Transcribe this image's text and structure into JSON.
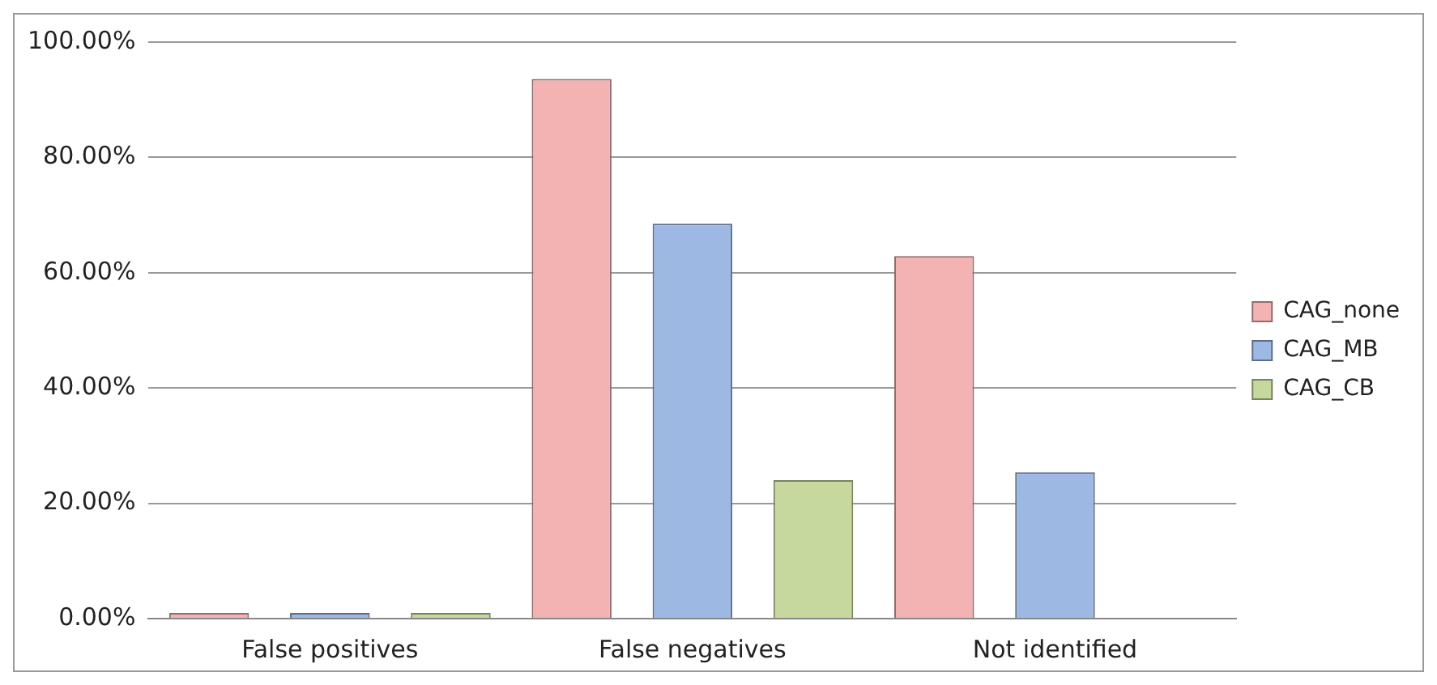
{
  "chart_data": {
    "type": "bar",
    "categories": [
      "False positives",
      "False negatives",
      "Not identified"
    ],
    "series": [
      {
        "name": "CAG_none",
        "color": "#f4b3b3",
        "values": [
          1,
          93.6,
          62.9
        ]
      },
      {
        "name": "CAG_MB",
        "color": "#9db8e2",
        "values": [
          1,
          68.5,
          25.4
        ]
      },
      {
        "name": "CAG_CB",
        "color": "#c6d89e",
        "values": [
          1,
          24,
          0
        ]
      }
    ],
    "ylim": [
      0,
      100
    ],
    "yticks": [
      {
        "value": 0,
        "label": "0.00%"
      },
      {
        "value": 20,
        "label": "20.00%"
      },
      {
        "value": 40,
        "label": "40.00%"
      },
      {
        "value": 60,
        "label": "60.00%"
      },
      {
        "value": 80,
        "label": "80.00%"
      },
      {
        "value": 100,
        "label": "100.00%"
      }
    ],
    "grid": "y",
    "legend": "right"
  }
}
